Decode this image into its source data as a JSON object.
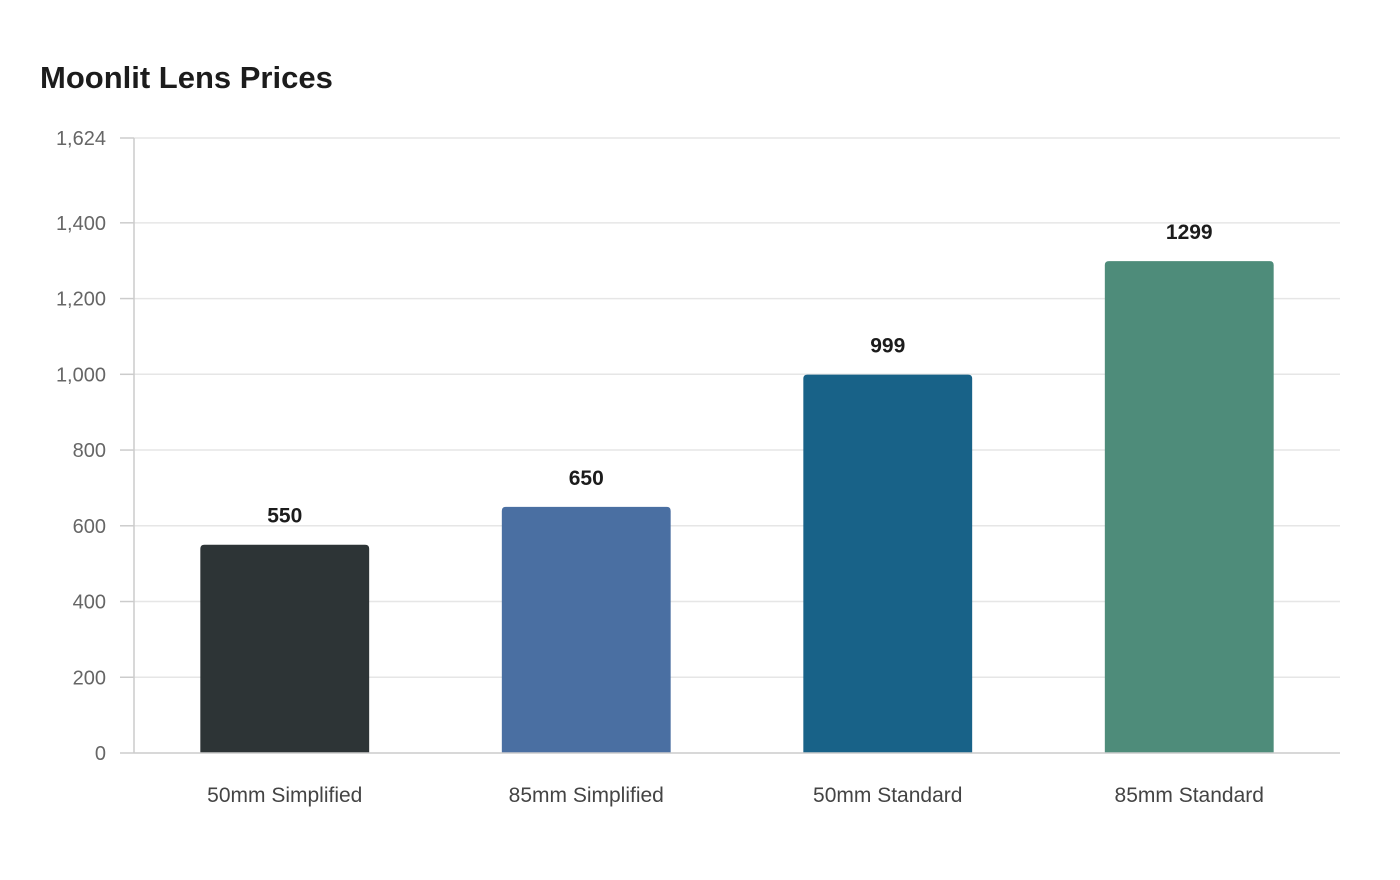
{
  "title": "Moonlit Lens Prices",
  "chart_data": {
    "type": "bar",
    "title": "Moonlit Lens Prices",
    "categories": [
      "50mm Simplified",
      "85mm Simplified",
      "50mm Standard",
      "85mm Standard"
    ],
    "values": [
      550,
      650,
      999,
      1299
    ],
    "value_labels": [
      "550",
      "650",
      "999",
      "1299"
    ],
    "colors": [
      "#2d3436",
      "#4a6fa2",
      "#186288",
      "#4e8c7a"
    ],
    "xlabel": "",
    "ylabel": "",
    "ylim": [
      0,
      1624
    ],
    "yticks": [
      0,
      200,
      400,
      600,
      800,
      1000,
      1200,
      1400,
      1624
    ],
    "ytick_labels": [
      "0",
      "200",
      "400",
      "600",
      "800",
      "1,000",
      "1,200",
      "1,400",
      "1,624"
    ],
    "grid": true,
    "legend": "none"
  }
}
